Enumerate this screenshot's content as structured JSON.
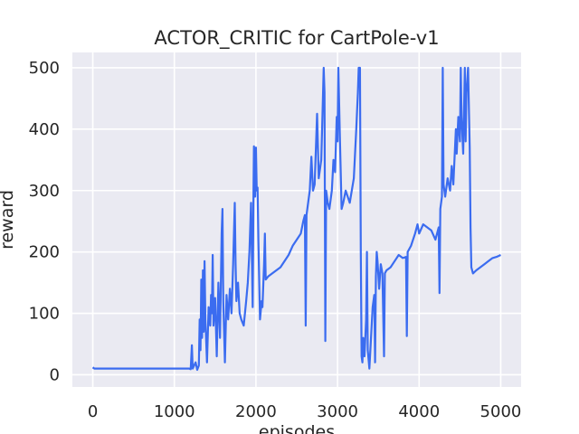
{
  "chart_data": {
    "type": "line",
    "title": "ACTOR_CRITIC for CartPole-v1",
    "xlabel": "episodes",
    "ylabel": "reward",
    "xlim": [
      -250,
      5250
    ],
    "ylim": [
      -20,
      525
    ],
    "xticks": [
      0,
      1000,
      2000,
      3000,
      4000,
      5000
    ],
    "yticks": [
      0,
      100,
      200,
      300,
      400,
      500
    ],
    "grid": true,
    "legend": "none",
    "colors": {
      "background": "#eaeaf2",
      "grid": "#ffffff",
      "line": "#3b6cf0",
      "text": "#262626"
    },
    "series": [
      {
        "points": [
          [
            0,
            12
          ],
          [
            20,
            10
          ],
          [
            200,
            10
          ],
          [
            600,
            10
          ],
          [
            1000,
            10
          ],
          [
            1180,
            10
          ],
          [
            1200,
            9
          ],
          [
            1215,
            48
          ],
          [
            1225,
            10
          ],
          [
            1260,
            20
          ],
          [
            1280,
            8
          ],
          [
            1300,
            15
          ],
          [
            1310,
            90
          ],
          [
            1320,
            40
          ],
          [
            1330,
            155
          ],
          [
            1340,
            60
          ],
          [
            1350,
            170
          ],
          [
            1360,
            70
          ],
          [
            1370,
            185
          ],
          [
            1380,
            90
          ],
          [
            1400,
            20
          ],
          [
            1420,
            110
          ],
          [
            1440,
            80
          ],
          [
            1450,
            130
          ],
          [
            1460,
            100
          ],
          [
            1470,
            195
          ],
          [
            1480,
            80
          ],
          [
            1500,
            125
          ],
          [
            1520,
            30
          ],
          [
            1540,
            150
          ],
          [
            1560,
            60
          ],
          [
            1580,
            230
          ],
          [
            1590,
            270
          ],
          [
            1600,
            120
          ],
          [
            1620,
            20
          ],
          [
            1640,
            130
          ],
          [
            1660,
            90
          ],
          [
            1680,
            140
          ],
          [
            1700,
            100
          ],
          [
            1720,
            180
          ],
          [
            1740,
            280
          ],
          [
            1750,
            180
          ],
          [
            1760,
            120
          ],
          [
            1780,
            150
          ],
          [
            1800,
            100
          ],
          [
            1820,
            90
          ],
          [
            1850,
            80
          ],
          [
            1880,
            120
          ],
          [
            1900,
            150
          ],
          [
            1920,
            200
          ],
          [
            1940,
            280
          ],
          [
            1960,
            110
          ],
          [
            1970,
            300
          ],
          [
            1975,
            372
          ],
          [
            1980,
            350
          ],
          [
            1990,
            290
          ],
          [
            2000,
            370
          ],
          [
            2010,
            300
          ],
          [
            2020,
            305
          ],
          [
            2030,
            220
          ],
          [
            2050,
            90
          ],
          [
            2070,
            120
          ],
          [
            2080,
            110
          ],
          [
            2100,
            180
          ],
          [
            2110,
            230
          ],
          [
            2120,
            155
          ],
          [
            2150,
            160
          ],
          [
            2200,
            165
          ],
          [
            2300,
            175
          ],
          [
            2400,
            195
          ],
          [
            2450,
            210
          ],
          [
            2500,
            220
          ],
          [
            2550,
            230
          ],
          [
            2580,
            250
          ],
          [
            2600,
            260
          ],
          [
            2610,
            80
          ],
          [
            2620,
            260
          ],
          [
            2640,
            280
          ],
          [
            2660,
            300
          ],
          [
            2680,
            355
          ],
          [
            2700,
            300
          ],
          [
            2720,
            310
          ],
          [
            2750,
            425
          ],
          [
            2770,
            320
          ],
          [
            2800,
            350
          ],
          [
            2815,
            420
          ],
          [
            2830,
            500
          ],
          [
            2840,
            460
          ],
          [
            2850,
            55
          ],
          [
            2860,
            300
          ],
          [
            2880,
            280
          ],
          [
            2900,
            270
          ],
          [
            2930,
            300
          ],
          [
            2950,
            350
          ],
          [
            2970,
            330
          ],
          [
            2990,
            420
          ],
          [
            3000,
            380
          ],
          [
            3010,
            500
          ],
          [
            3030,
            380
          ],
          [
            3050,
            270
          ],
          [
            3070,
            280
          ],
          [
            3100,
            300
          ],
          [
            3150,
            280
          ],
          [
            3200,
            320
          ],
          [
            3230,
            400
          ],
          [
            3250,
            460
          ],
          [
            3260,
            500
          ],
          [
            3275,
            500
          ],
          [
            3285,
            200
          ],
          [
            3295,
            30
          ],
          [
            3305,
            20
          ],
          [
            3315,
            60
          ],
          [
            3330,
            30
          ],
          [
            3350,
            90
          ],
          [
            3360,
            200
          ],
          [
            3370,
            40
          ],
          [
            3390,
            10
          ],
          [
            3410,
            60
          ],
          [
            3430,
            110
          ],
          [
            3450,
            130
          ],
          [
            3460,
            20
          ],
          [
            3470,
            160
          ],
          [
            3480,
            200
          ],
          [
            3490,
            185
          ],
          [
            3510,
            140
          ],
          [
            3530,
            180
          ],
          [
            3550,
            165
          ],
          [
            3570,
            30
          ],
          [
            3580,
            165
          ],
          [
            3600,
            170
          ],
          [
            3650,
            175
          ],
          [
            3700,
            185
          ],
          [
            3750,
            195
          ],
          [
            3800,
            190
          ],
          [
            3840,
            192
          ],
          [
            3850,
            63
          ],
          [
            3860,
            200
          ],
          [
            3900,
            210
          ],
          [
            3950,
            230
          ],
          [
            3980,
            245
          ],
          [
            4000,
            230
          ],
          [
            4050,
            245
          ],
          [
            4100,
            240
          ],
          [
            4150,
            235
          ],
          [
            4200,
            220
          ],
          [
            4240,
            240
          ],
          [
            4250,
            133
          ],
          [
            4260,
            270
          ],
          [
            4280,
            290
          ],
          [
            4290,
            500
          ],
          [
            4300,
            310
          ],
          [
            4320,
            290
          ],
          [
            4350,
            320
          ],
          [
            4380,
            300
          ],
          [
            4400,
            340
          ],
          [
            4420,
            310
          ],
          [
            4450,
            400
          ],
          [
            4460,
            360
          ],
          [
            4480,
            420
          ],
          [
            4500,
            380
          ],
          [
            4510,
            500
          ],
          [
            4520,
            420
          ],
          [
            4540,
            360
          ],
          [
            4560,
            500
          ],
          [
            4570,
            380
          ],
          [
            4580,
            460
          ],
          [
            4600,
            500
          ],
          [
            4620,
            370
          ],
          [
            4630,
            240
          ],
          [
            4640,
            175
          ],
          [
            4660,
            165
          ],
          [
            4700,
            170
          ],
          [
            4750,
            175
          ],
          [
            4800,
            180
          ],
          [
            4850,
            185
          ],
          [
            4900,
            190
          ],
          [
            4950,
            192
          ],
          [
            5000,
            195
          ]
        ]
      }
    ]
  }
}
